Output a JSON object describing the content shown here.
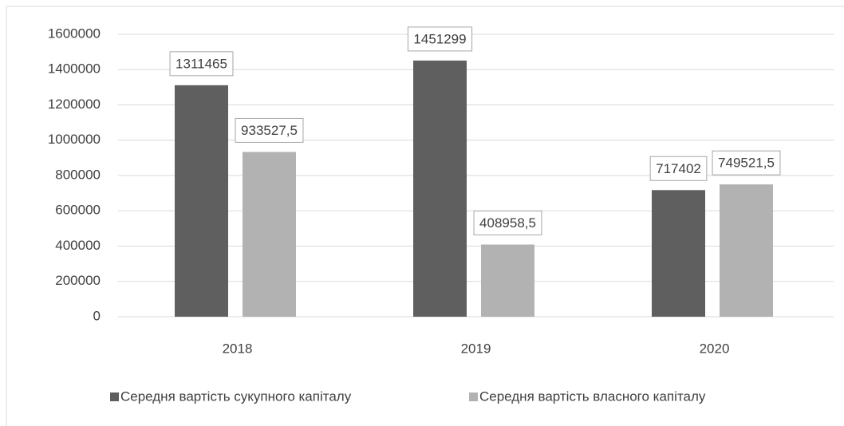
{
  "chart_data": {
    "type": "bar",
    "categories": [
      "2018",
      "2019",
      "2020"
    ],
    "series": [
      {
        "name": "Середня вартість сукупного капіталу",
        "color": "#5f5f5f",
        "values": [
          1311465,
          1451299,
          717402
        ]
      },
      {
        "name": "Середня вартість власного капіталу",
        "color": "#b2b2b2",
        "values": [
          933527.5,
          408958.5,
          749521.5
        ],
        "value_labels": [
          "933527,5",
          "408958,5",
          "749521,5"
        ]
      }
    ],
    "ylim": [
      0,
      1600000
    ],
    "yticks": [
      0,
      200000,
      400000,
      600000,
      800000,
      1000000,
      1200000,
      1400000,
      1600000
    ],
    "grid": true,
    "legend": "bottom"
  }
}
